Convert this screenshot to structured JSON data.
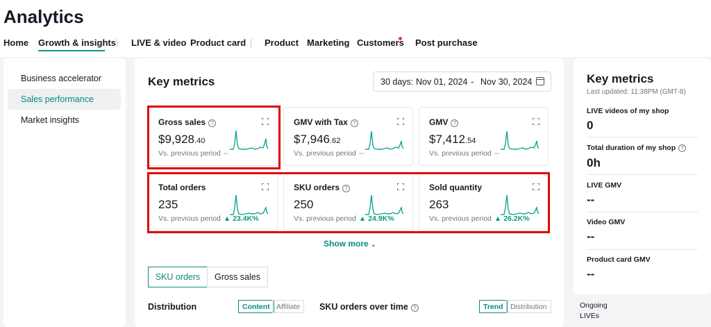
{
  "app_title": "Analytics",
  "nav": {
    "items": [
      "Home",
      "Growth & insights",
      "LIVE & video",
      "Product card",
      "Product",
      "Marketing",
      "Customers",
      "Post purchase"
    ],
    "active": "Growth & insights"
  },
  "sidebar": {
    "items": [
      "Business accelerator",
      "Sales performance",
      "Market insights"
    ],
    "active": "Sales performance"
  },
  "main": {
    "title": "Key metrics",
    "date": {
      "prefix": "30 days:",
      "start": "Nov 01, 2024",
      "sep": "-",
      "end": "Nov 30, 2024"
    },
    "cards": [
      {
        "label": "Gross sales",
        "currency": "$",
        "int": "9,928",
        "dec": ".40",
        "compare": "Vs. previous period",
        "change": "--",
        "trend": "none"
      },
      {
        "label": "GMV with Tax",
        "currency": "$",
        "int": "7,946",
        "dec": ".62",
        "compare": "Vs. previous period",
        "change": "--",
        "trend": "none"
      },
      {
        "label": "GMV",
        "currency": "$",
        "int": "7,412",
        "dec": ".54",
        "compare": "Vs. previous period",
        "change": "--",
        "trend": "none"
      },
      {
        "label": "Total orders",
        "int": "235",
        "compare": "Vs. previous period",
        "change": "23.4K%",
        "trend": "up"
      },
      {
        "label": "SKU orders",
        "int": "250",
        "compare": "Vs. previous period",
        "change": "24.9K%",
        "trend": "up"
      },
      {
        "label": "Sold quantity",
        "int": "263",
        "compare": "Vs. previous period",
        "change": "26.2K%",
        "trend": "up"
      }
    ],
    "show_more": "Show more",
    "tabs": [
      "SKU orders",
      "Gross sales"
    ],
    "active_tab": "SKU orders",
    "distribution_label": "Distribution",
    "distribution_toggle": [
      "Content",
      "Affiliate"
    ],
    "distribution_active": "Content",
    "trend_label": "SKU orders over time",
    "trend_toggle": [
      "Trend",
      "Distribution"
    ],
    "trend_active": "Trend"
  },
  "right_panel": {
    "title": "Key metrics",
    "updated": "Last updated: 11:38PM (GMT-8)",
    "metrics": [
      {
        "label": "LIVE videos of my shop",
        "value": "0",
        "help": false
      },
      {
        "label": "Total duration of my shop",
        "value": "0h",
        "help": true
      },
      {
        "label": "LIVE GMV",
        "value": "--",
        "help": false
      },
      {
        "label": "Video GMV",
        "value": "--",
        "help": false
      },
      {
        "label": "Product card GMV",
        "value": "--",
        "help": false
      }
    ],
    "ongoing": "Ongoing LIVEs"
  },
  "colors": {
    "accent": "#0a8a80",
    "sparkline": "#16a394",
    "up": "#0a9e72",
    "highlight": "#e00000",
    "badge": "#fe2c55"
  },
  "icons": {
    "help": "question-circle-icon",
    "expand": "expand-corners-icon",
    "calendar": "calendar-icon",
    "chevron": "chevron-down-icon",
    "arrow_up": "triangle-up-icon"
  }
}
